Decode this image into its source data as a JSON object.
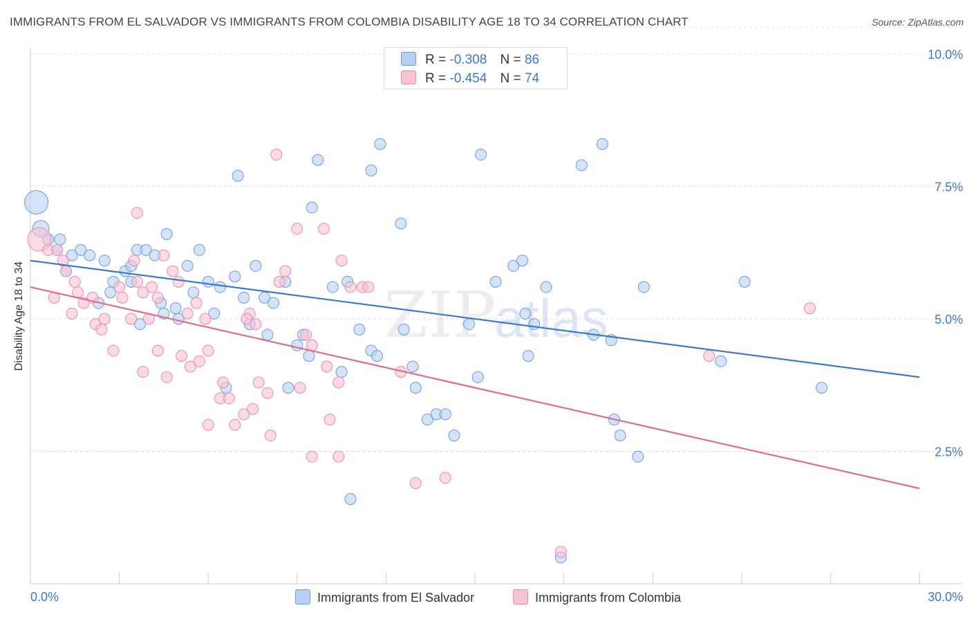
{
  "title": "IMMIGRANTS FROM EL SALVADOR VS IMMIGRANTS FROM COLOMBIA DISABILITY AGE 18 TO 34 CORRELATION CHART",
  "source": "Source: ZipAtlas.com",
  "legend_stats": [
    {
      "r_label": "R =",
      "r_value": "-0.308",
      "n_label": "N =",
      "n_value": "86"
    },
    {
      "r_label": "R =",
      "r_value": "-0.454",
      "n_label": "N =",
      "n_value": "74"
    }
  ],
  "watermark": {
    "zip": "ZIP",
    "atlas": "atlas"
  },
  "colors": {
    "el_salvador_fill": "#b8d0f2",
    "el_salvador_stroke": "#6a9ad8",
    "el_salvador_line": "#3a78d4",
    "colombia_fill": "#f6c2d4",
    "colombia_stroke": "#e78aa9",
    "colombia_line": "#e06a92",
    "tick_label": "#3a78c9",
    "grid": "#dddddd"
  },
  "chart_data": {
    "type": "scatter",
    "title": "IMMIGRANTS FROM EL SALVADOR VS IMMIGRANTS FROM COLOMBIA DISABILITY AGE 18 TO 34 CORRELATION CHART",
    "xlabel": "",
    "ylabel": "Disability Age 18 to 34",
    "xlim": [
      0,
      30
    ],
    "ylim": [
      0,
      10.5
    ],
    "x_tick_labels": [
      "0.0%",
      "30.0%"
    ],
    "y_ticks": [
      2.5,
      5.0,
      7.5,
      10.0
    ],
    "y_tick_labels": [
      "2.5%",
      "5.0%",
      "7.5%",
      "10.0%"
    ],
    "grid": true,
    "legend_position": "top-center",
    "series": [
      {
        "name": "Immigrants from El Salvador",
        "r": -0.308,
        "n": 86,
        "trend": {
          "x": [
            0,
            30
          ],
          "y": [
            6.1,
            3.9
          ]
        },
        "points": [
          [
            0.2,
            7.2
          ],
          [
            0.35,
            6.7
          ],
          [
            0.6,
            6.5
          ],
          [
            1.0,
            6.5
          ],
          [
            0.9,
            6.3
          ],
          [
            1.4,
            6.2
          ],
          [
            1.7,
            6.3
          ],
          [
            2.0,
            6.2
          ],
          [
            2.5,
            6.1
          ],
          [
            1.2,
            5.9
          ],
          [
            3.2,
            5.9
          ],
          [
            2.8,
            5.7
          ],
          [
            3.4,
            5.7
          ],
          [
            3.6,
            6.3
          ],
          [
            3.9,
            6.3
          ],
          [
            4.2,
            6.2
          ],
          [
            4.6,
            6.6
          ],
          [
            5.3,
            6.0
          ],
          [
            5.7,
            6.3
          ],
          [
            2.7,
            5.5
          ],
          [
            2.3,
            5.3
          ],
          [
            4.4,
            5.3
          ],
          [
            4.9,
            5.2
          ],
          [
            5.0,
            5.0
          ],
          [
            5.5,
            5.5
          ],
          [
            6.0,
            5.7
          ],
          [
            6.4,
            5.6
          ],
          [
            6.9,
            5.8
          ],
          [
            7.2,
            5.4
          ],
          [
            7.6,
            6.0
          ],
          [
            7.9,
            5.4
          ],
          [
            8.2,
            5.3
          ],
          [
            8.6,
            5.7
          ],
          [
            7.4,
            4.9
          ],
          [
            8.0,
            4.7
          ],
          [
            3.7,
            4.9
          ],
          [
            9.0,
            4.5
          ],
          [
            9.2,
            4.7
          ],
          [
            9.4,
            4.3
          ],
          [
            10.2,
            5.6
          ],
          [
            10.7,
            5.7
          ],
          [
            11.1,
            4.8
          ],
          [
            10.5,
            4.0
          ],
          [
            11.5,
            4.4
          ],
          [
            11.7,
            4.3
          ],
          [
            12.6,
            4.8
          ],
          [
            12.9,
            4.1
          ],
          [
            13.0,
            3.7
          ],
          [
            13.4,
            3.1
          ],
          [
            13.7,
            3.2
          ],
          [
            14.0,
            3.2
          ],
          [
            14.3,
            2.8
          ],
          [
            6.6,
            3.7
          ],
          [
            8.7,
            3.7
          ],
          [
            9.5,
            7.1
          ],
          [
            9.7,
            8.0
          ],
          [
            7.0,
            7.7
          ],
          [
            11.5,
            7.8
          ],
          [
            11.8,
            8.3
          ],
          [
            12.5,
            6.8
          ],
          [
            14.8,
            4.9
          ],
          [
            15.1,
            3.9
          ],
          [
            15.7,
            5.7
          ],
          [
            15.2,
            8.1
          ],
          [
            16.3,
            6.0
          ],
          [
            16.6,
            6.1
          ],
          [
            16.7,
            5.1
          ],
          [
            17.0,
            4.9
          ],
          [
            16.8,
            4.3
          ],
          [
            17.4,
            5.6
          ],
          [
            18.6,
            7.9
          ],
          [
            19.3,
            8.3
          ],
          [
            19.0,
            4.7
          ],
          [
            19.6,
            4.6
          ],
          [
            19.7,
            3.1
          ],
          [
            19.9,
            2.8
          ],
          [
            20.5,
            2.4
          ],
          [
            20.7,
            5.6
          ],
          [
            23.3,
            4.2
          ],
          [
            24.1,
            5.7
          ],
          [
            26.7,
            3.7
          ],
          [
            10.8,
            1.6
          ],
          [
            17.9,
            0.5
          ],
          [
            3.4,
            6.0
          ],
          [
            4.5,
            5.1
          ],
          [
            6.2,
            5.1
          ]
        ]
      },
      {
        "name": "Immigrants from Colombia",
        "r": -0.454,
        "n": 74,
        "trend": {
          "x": [
            0,
            30
          ],
          "y": [
            5.6,
            1.8
          ]
        },
        "points": [
          [
            0.3,
            6.5
          ],
          [
            0.6,
            6.3
          ],
          [
            0.9,
            6.3
          ],
          [
            1.1,
            6.1
          ],
          [
            1.2,
            5.9
          ],
          [
            0.8,
            5.4
          ],
          [
            1.5,
            5.7
          ],
          [
            1.6,
            5.5
          ],
          [
            1.8,
            5.3
          ],
          [
            2.1,
            5.4
          ],
          [
            1.4,
            5.1
          ],
          [
            2.2,
            4.9
          ],
          [
            2.4,
            4.8
          ],
          [
            2.5,
            5.0
          ],
          [
            3.0,
            5.6
          ],
          [
            3.1,
            5.4
          ],
          [
            3.4,
            5.0
          ],
          [
            3.5,
            6.1
          ],
          [
            3.6,
            5.7
          ],
          [
            3.8,
            5.5
          ],
          [
            4.1,
            5.6
          ],
          [
            4.3,
            5.4
          ],
          [
            4.0,
            5.0
          ],
          [
            4.5,
            6.2
          ],
          [
            4.8,
            5.9
          ],
          [
            5.0,
            5.7
          ],
          [
            5.3,
            5.1
          ],
          [
            5.6,
            5.3
          ],
          [
            5.9,
            5.0
          ],
          [
            2.8,
            4.4
          ],
          [
            3.8,
            4.0
          ],
          [
            4.3,
            4.4
          ],
          [
            4.6,
            3.9
          ],
          [
            5.1,
            4.3
          ],
          [
            5.4,
            4.1
          ],
          [
            5.7,
            4.2
          ],
          [
            6.0,
            4.4
          ],
          [
            6.5,
            3.8
          ],
          [
            6.4,
            3.5
          ],
          [
            6.9,
            3.0
          ],
          [
            7.2,
            3.2
          ],
          [
            7.5,
            3.3
          ],
          [
            7.7,
            3.8
          ],
          [
            8.0,
            3.6
          ],
          [
            8.1,
            2.8
          ],
          [
            7.4,
            5.1
          ],
          [
            8.4,
            5.7
          ],
          [
            8.6,
            5.9
          ],
          [
            9.1,
            3.7
          ],
          [
            9.3,
            4.7
          ],
          [
            9.5,
            4.5
          ],
          [
            10.0,
            4.1
          ],
          [
            10.1,
            3.1
          ],
          [
            10.4,
            3.8
          ],
          [
            10.8,
            5.6
          ],
          [
            11.2,
            5.6
          ],
          [
            12.5,
            4.0
          ],
          [
            9.0,
            6.7
          ],
          [
            9.9,
            6.7
          ],
          [
            10.5,
            6.1
          ],
          [
            11.4,
            5.6
          ],
          [
            7.3,
            5.0
          ],
          [
            7.6,
            4.9
          ],
          [
            8.3,
            8.1
          ],
          [
            3.6,
            7.0
          ],
          [
            9.5,
            2.4
          ],
          [
            10.4,
            2.4
          ],
          [
            13.0,
            1.9
          ],
          [
            14.0,
            2.0
          ],
          [
            17.9,
            0.6
          ],
          [
            22.9,
            4.3
          ],
          [
            26.3,
            5.2
          ],
          [
            6.7,
            3.5
          ],
          [
            6.0,
            3.0
          ]
        ]
      }
    ]
  }
}
